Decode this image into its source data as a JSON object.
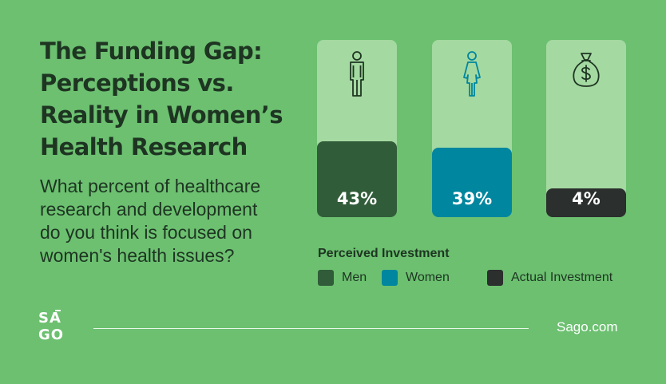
{
  "title": "The Funding Gap: Perceptions vs. Reality in Women’s Health Research",
  "question": "What percent of healthcare research and development do you think is focused on women's health issues?",
  "colors": {
    "background": "#6cc070",
    "track": "#a4d9a1",
    "men": "#315c39",
    "women": "#00869e",
    "actual": "#2b2f2d",
    "text": "#1e3522"
  },
  "chart_data": {
    "type": "bar",
    "categories": [
      "Men",
      "Women",
      "Actual Investment"
    ],
    "values": [
      43,
      39,
      4
    ],
    "value_labels": [
      "43%",
      "39%",
      "4%"
    ],
    "icons": [
      "man-icon",
      "woman-icon",
      "money-bag-icon"
    ],
    "ylim": [
      0,
      100
    ],
    "title": "The Funding Gap: Perceptions vs. Reality in Women’s Health Research",
    "xlabel": "",
    "ylabel": "",
    "legend": {
      "title": "Perceived Investment",
      "items": [
        "Men",
        "Women",
        "Actual Investment"
      ],
      "placement": "bottom"
    }
  },
  "footer": {
    "logo_line1": "SA",
    "logo_line2": "GO",
    "site": "Sago.com"
  }
}
